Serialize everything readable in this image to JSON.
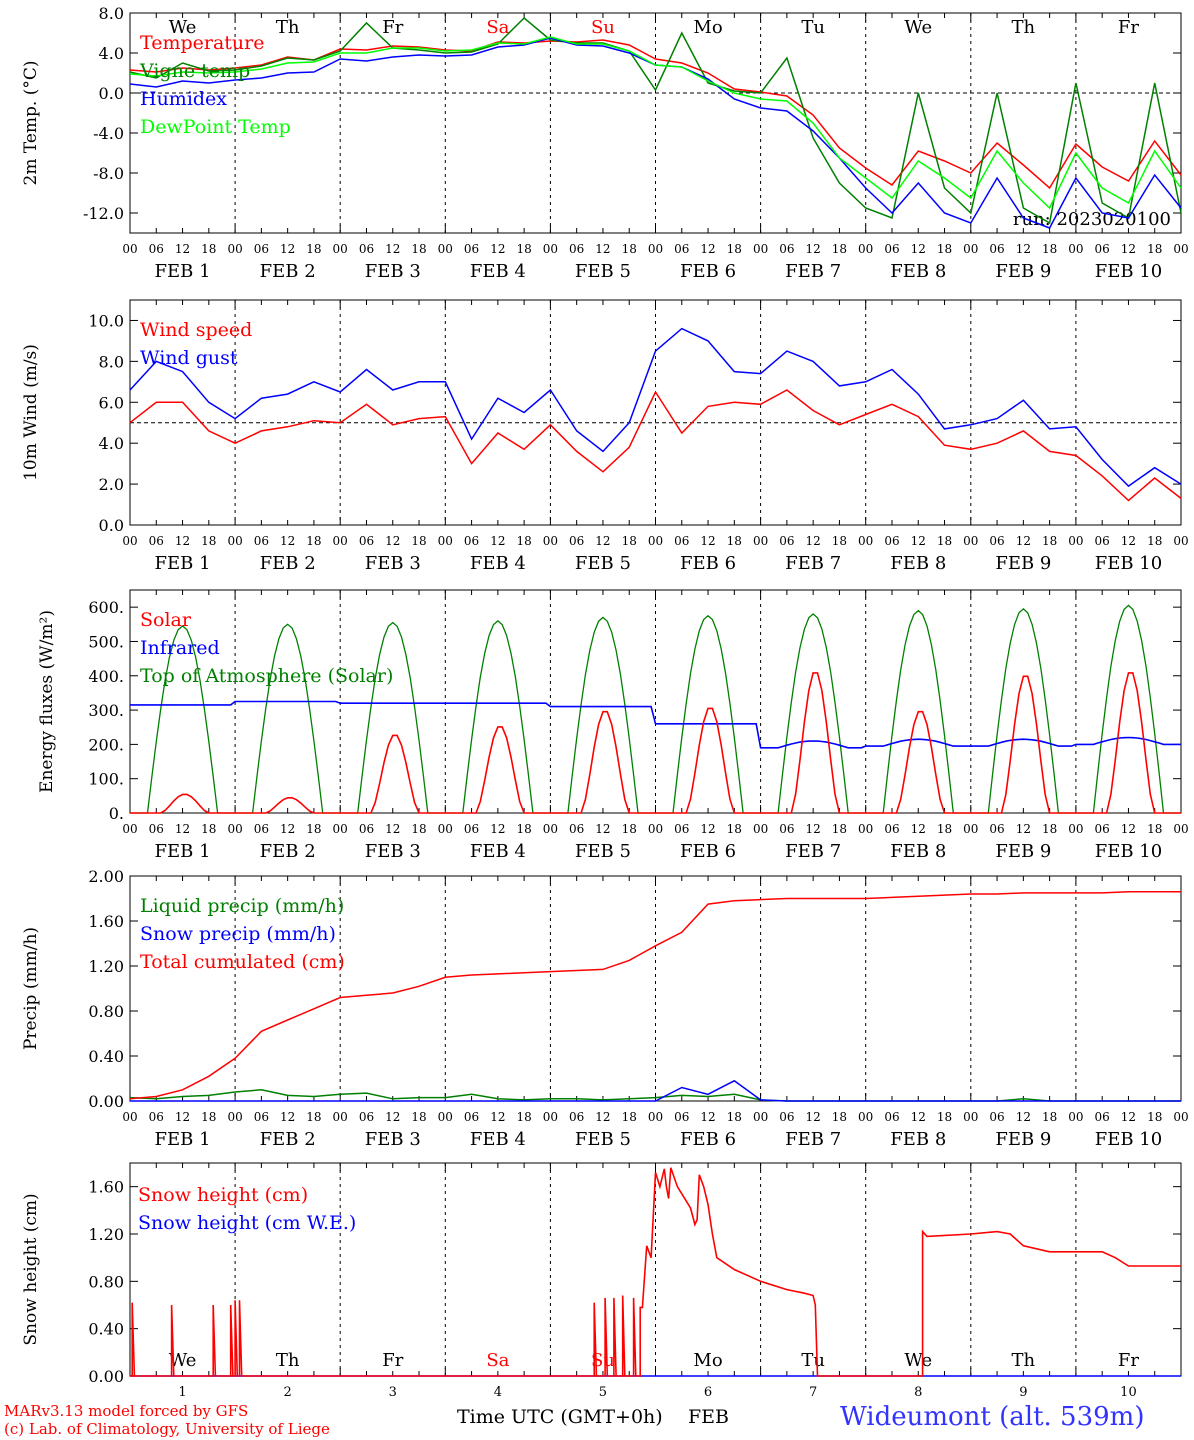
{
  "station": "Wideumont (alt. 539m)",
  "credits": [
    "MARv3.13 model forced by GFS",
    "(c) Lab. of Climatology, University of Liege"
  ],
  "xaxis_title": "Time UTC (GMT+0h)",
  "month_label": "FEB",
  "colors": {
    "red": "#ff0000",
    "blue": "#0000ff",
    "green": "#008000",
    "lightgreen": "#00ff00",
    "station": "#3333ff"
  },
  "chart_data": [
    {
      "type": "line",
      "ylabel": "2m Temp. (°C)",
      "ylim": [
        -14,
        8
      ],
      "yticks": [
        "8.0",
        "4.0",
        "0.0",
        "-4.0",
        "-8.0",
        "-12.0"
      ],
      "ytick_values": [
        8,
        4,
        0,
        -4,
        -8,
        -12
      ],
      "ref_line": 0,
      "run_label": "run: 2023020100",
      "weekdays": [
        {
          "label": "We",
          "color": "#000000"
        },
        {
          "label": "Th",
          "color": "#000000"
        },
        {
          "label": "Fr",
          "color": "#000000"
        },
        {
          "label": "Sa",
          "color": "#ff0000"
        },
        {
          "label": "Su",
          "color": "#ff0000"
        },
        {
          "label": "Mo",
          "color": "#000000"
        },
        {
          "label": "Tu",
          "color": "#000000"
        },
        {
          "label": "We",
          "color": "#000000"
        },
        {
          "label": "Th",
          "color": "#000000"
        },
        {
          "label": "Fr",
          "color": "#000000"
        }
      ],
      "x_hours": [
        0,
        6,
        12,
        18,
        24,
        30,
        36,
        42,
        48,
        54,
        60,
        66,
        72,
        78,
        84,
        90,
        96,
        102,
        108,
        114,
        120,
        126,
        132,
        138,
        144,
        150,
        156,
        162,
        168,
        174,
        180,
        186,
        192,
        198,
        204,
        210,
        216,
        222,
        228,
        234,
        240
      ],
      "series": [
        {
          "name": "Temperature",
          "color": "#ff0000",
          "values": [
            2.3,
            2.1,
            2.5,
            2.3,
            2.5,
            2.8,
            3.6,
            3.3,
            4.4,
            4.3,
            4.7,
            4.6,
            4.3,
            4.2,
            5.1,
            5.0,
            5.2,
            5.1,
            5.3,
            4.8,
            3.4,
            3.0,
            2.0,
            0.4,
            0.1,
            -0.3,
            -2.2,
            -5.5,
            -7.5,
            -9.2,
            -5.8,
            -6.8,
            -8.0,
            -5.0,
            -7.2,
            -9.5,
            -5.1,
            -7.4,
            -8.8,
            -4.8,
            -8.2
          ]
        },
        {
          "name": "Vigne temp",
          "color": "#008000",
          "values": [
            2.1,
            1.5,
            3.0,
            2.2,
            2.3,
            2.7,
            3.5,
            3.3,
            4.2,
            7.0,
            4.5,
            4.3,
            4.0,
            4.1,
            4.9,
            7.5,
            5.3,
            5.0,
            5.0,
            4.2,
            0.3,
            6.0,
            1.0,
            0.2,
            0.0,
            3.5,
            -4.5,
            -9.0,
            -11.5,
            -12.5,
            0.0,
            -9.5,
            -12.0,
            0.0,
            -11.5,
            -13.0,
            1.0,
            -11.0,
            -12.5,
            1.0,
            -12.0
          ]
        },
        {
          "name": "Humidex",
          "color": "#0000ff",
          "values": [
            0.9,
            0.6,
            1.2,
            1.0,
            1.3,
            1.5,
            2.0,
            2.1,
            3.4,
            3.2,
            3.6,
            3.8,
            3.7,
            3.8,
            4.6,
            4.8,
            5.5,
            4.8,
            4.7,
            4.0,
            2.8,
            2.6,
            1.4,
            -0.6,
            -1.5,
            -1.8,
            -3.8,
            -6.5,
            -9.5,
            -12.0,
            -9.0,
            -12.0,
            -13.0,
            -8.5,
            -12.5,
            -13.5,
            -8.5,
            -12.0,
            -12.5,
            -8.2,
            -11.5
          ]
        },
        {
          "name": "DewPoint Temp",
          "color": "#00ff00",
          "values": [
            1.9,
            1.7,
            2.1,
            2.0,
            2.1,
            2.4,
            3.0,
            3.1,
            4.0,
            4.0,
            4.5,
            4.5,
            4.2,
            4.3,
            5.0,
            4.9,
            5.6,
            4.9,
            4.9,
            4.2,
            2.8,
            2.6,
            1.2,
            0.0,
            -0.6,
            -0.8,
            -3.0,
            -6.5,
            -8.5,
            -10.5,
            -6.8,
            -8.5,
            -10.5,
            -5.8,
            -9.0,
            -11.5,
            -6.0,
            -9.5,
            -11.0,
            -5.8,
            -9.5
          ]
        }
      ]
    },
    {
      "type": "line",
      "ylabel": "10m Wind (m/s)",
      "ylim": [
        0,
        11
      ],
      "yticks": [
        "10.0",
        "8.0",
        "6.0",
        "4.0",
        "2.0",
        "0.0"
      ],
      "ytick_values": [
        10,
        8,
        6,
        4,
        2,
        0
      ],
      "ref_line": 5,
      "x_hours": [
        0,
        6,
        12,
        18,
        24,
        30,
        36,
        42,
        48,
        54,
        60,
        66,
        72,
        78,
        84,
        90,
        96,
        102,
        108,
        114,
        120,
        126,
        132,
        138,
        144,
        150,
        156,
        162,
        168,
        174,
        180,
        186,
        192,
        198,
        204,
        210,
        216,
        222,
        228,
        234,
        240
      ],
      "series": [
        {
          "name": "Wind speed",
          "color": "#ff0000",
          "values": [
            5.0,
            6.0,
            6.0,
            4.6,
            4.0,
            4.6,
            4.8,
            5.1,
            5.0,
            5.9,
            4.9,
            5.2,
            5.3,
            3.0,
            4.5,
            3.7,
            4.9,
            3.6,
            2.6,
            3.8,
            6.5,
            4.5,
            5.8,
            6.0,
            5.9,
            6.6,
            5.6,
            4.9,
            5.4,
            5.9,
            5.3,
            3.9,
            3.7,
            4.0,
            4.6,
            3.6,
            3.4,
            2.4,
            1.2,
            2.3,
            1.3
          ]
        },
        {
          "name": "Wind gust",
          "color": "#0000ff",
          "values": [
            6.6,
            8.0,
            7.5,
            6.0,
            5.2,
            6.2,
            6.4,
            7.0,
            6.5,
            7.6,
            6.6,
            7.0,
            7.0,
            4.2,
            6.2,
            5.5,
            6.6,
            4.6,
            3.6,
            5.0,
            8.5,
            9.6,
            9.0,
            7.5,
            7.4,
            8.5,
            8.0,
            6.8,
            7.0,
            7.6,
            6.4,
            4.7,
            4.9,
            5.2,
            6.1,
            4.7,
            4.8,
            3.2,
            1.9,
            2.8,
            2.0
          ]
        }
      ]
    },
    {
      "type": "line",
      "ylabel": "Energy fluxes (W/m²)",
      "ylim": [
        0,
        650
      ],
      "yticks": [
        "600.",
        "500.",
        "400.",
        "300.",
        "200.",
        "100.",
        "0."
      ],
      "ytick_values": [
        600,
        500,
        400,
        300,
        200,
        100,
        0
      ],
      "toa_peaks": [
        545,
        550,
        555,
        560,
        570,
        575,
        580,
        590,
        595,
        605
      ],
      "solar_peaks": [
        55,
        45,
        230,
        255,
        300,
        310,
        415,
        300,
        405,
        415
      ],
      "infrared_days": [
        315,
        325,
        320,
        320,
        310,
        260,
        190,
        195,
        195,
        200
      ],
      "series": [
        {
          "name": "Solar",
          "color": "#ff0000"
        },
        {
          "name": "Infrared",
          "color": "#0000ff"
        },
        {
          "name": "Top of Atmosphere (Solar)",
          "color": "#008000"
        }
      ]
    },
    {
      "type": "line",
      "ylabel": "Precip (mm/h)",
      "ylim": [
        0,
        2.0
      ],
      "yticks": [
        "2.00",
        "1.60",
        "1.20",
        "0.80",
        "0.40",
        "0.00"
      ],
      "ytick_values": [
        2.0,
        1.6,
        1.2,
        0.8,
        0.4,
        0.0
      ],
      "x_hours": [
        0,
        6,
        12,
        18,
        24,
        30,
        36,
        42,
        48,
        54,
        60,
        66,
        72,
        78,
        84,
        90,
        96,
        102,
        108,
        114,
        120,
        126,
        132,
        138,
        144,
        150,
        156,
        162,
        168,
        174,
        180,
        186,
        192,
        198,
        204,
        210,
        216,
        222,
        228,
        234,
        240
      ],
      "series": [
        {
          "name": "Liquid precip (mm/h)",
          "color": "#008000",
          "values": [
            0.03,
            0.02,
            0.04,
            0.05,
            0.08,
            0.1,
            0.05,
            0.04,
            0.06,
            0.07,
            0.02,
            0.03,
            0.03,
            0.06,
            0.02,
            0.01,
            0.02,
            0.02,
            0.01,
            0.02,
            0.03,
            0.05,
            0.04,
            0.06,
            0.01,
            0.0,
            0.0,
            0.0,
            0.0,
            0.0,
            0.0,
            0.0,
            0.0,
            0.0,
            0.02,
            0.0,
            0.0,
            0.0,
            0.0,
            0.0,
            0.0
          ]
        },
        {
          "name": "Snow precip (mm/h)",
          "color": "#0000ff",
          "values": [
            0.0,
            0.0,
            0.0,
            0.0,
            0.0,
            0.0,
            0.0,
            0.0,
            0.0,
            0.0,
            0.0,
            0.0,
            0.0,
            0.0,
            0.0,
            0.0,
            0.0,
            0.0,
            0.0,
            0.0,
            0.0,
            0.12,
            0.06,
            0.18,
            0.01,
            0.0,
            0.0,
            0.0,
            0.0,
            0.0,
            0.0,
            0.0,
            0.0,
            0.0,
            0.0,
            0.0,
            0.0,
            0.0,
            0.0,
            0.0,
            0.0
          ]
        },
        {
          "name": "Total cumulated (cm)",
          "color": "#ff0000",
          "values": [
            0.02,
            0.04,
            0.1,
            0.22,
            0.38,
            0.62,
            0.72,
            0.82,
            0.92,
            0.94,
            0.96,
            1.02,
            1.1,
            1.12,
            1.13,
            1.14,
            1.15,
            1.16,
            1.17,
            1.25,
            1.38,
            1.5,
            1.75,
            1.78,
            1.79,
            1.8,
            1.8,
            1.8,
            1.8,
            1.81,
            1.82,
            1.83,
            1.84,
            1.84,
            1.85,
            1.85,
            1.85,
            1.85,
            1.86,
            1.86,
            1.86
          ]
        }
      ]
    },
    {
      "type": "line",
      "ylabel": "Snow height (cm)",
      "ylim": [
        0,
        1.8
      ],
      "yticks": [
        "1.60",
        "1.20",
        "0.80",
        "0.40",
        "0.00"
      ],
      "ytick_values": [
        1.6,
        1.2,
        0.8,
        0.4,
        0.0
      ],
      "day_numbers": [
        "1",
        "2",
        "3",
        "4",
        "5",
        "6",
        "7",
        "8",
        "9",
        "10"
      ],
      "weekdays": [
        {
          "label": "We",
          "color": "#000000"
        },
        {
          "label": "Th",
          "color": "#000000"
        },
        {
          "label": "Fr",
          "color": "#000000"
        },
        {
          "label": "Sa",
          "color": "#ff0000"
        },
        {
          "label": "Su",
          "color": "#ff0000"
        },
        {
          "label": "Mo",
          "color": "#000000"
        },
        {
          "label": "Tu",
          "color": "#000000"
        },
        {
          "label": "We",
          "color": "#000000"
        },
        {
          "label": "Th",
          "color": "#000000"
        },
        {
          "label": "Fr",
          "color": "#000000"
        }
      ],
      "series": [
        {
          "name": "Snow height (cm)",
          "color": "#ff0000",
          "points": [
            [
              0,
              0
            ],
            [
              0.5,
              0
            ],
            [
              0.5,
              0.62
            ],
            [
              1,
              0
            ],
            [
              9.5,
              0
            ],
            [
              9.5,
              0.6
            ],
            [
              10,
              0
            ],
            [
              19,
              0
            ],
            [
              19,
              0.6
            ],
            [
              19.5,
              0
            ],
            [
              23,
              0
            ],
            [
              23,
              0.6
            ],
            [
              23.5,
              0
            ],
            [
              24,
              0
            ],
            [
              24,
              0.64
            ],
            [
              24.5,
              0
            ],
            [
              25,
              0
            ],
            [
              25,
              0.64
            ],
            [
              25.5,
              0
            ],
            [
              106,
              0
            ],
            [
              106,
              0.62
            ],
            [
              106.5,
              0
            ],
            [
              108.5,
              0
            ],
            [
              108.5,
              0.66
            ],
            [
              109,
              0
            ],
            [
              110.5,
              0
            ],
            [
              110.5,
              0.66
            ],
            [
              111,
              0
            ],
            [
              112.5,
              0
            ],
            [
              112.5,
              0.68
            ],
            [
              113,
              0
            ],
            [
              115,
              0
            ],
            [
              115,
              0.66
            ],
            [
              115.5,
              0
            ],
            [
              116.5,
              0
            ],
            [
              116.5,
              0.58
            ],
            [
              117,
              0.58
            ],
            [
              118,
              1.1
            ],
            [
              119,
              1.0
            ],
            [
              120,
              1.72
            ],
            [
              121,
              1.6
            ],
            [
              122,
              1.75
            ],
            [
              122.5,
              1.6
            ],
            [
              123,
              1.5
            ],
            [
              123.5,
              1.76
            ],
            [
              125,
              1.6
            ],
            [
              127,
              1.48
            ],
            [
              128,
              1.42
            ],
            [
              129,
              1.28
            ],
            [
              129.5,
              1.32
            ],
            [
              130,
              1.7
            ],
            [
              131,
              1.6
            ],
            [
              132,
              1.45
            ],
            [
              133,
              1.2
            ],
            [
              134,
              1.0
            ],
            [
              138,
              0.9
            ],
            [
              144,
              0.8
            ],
            [
              150,
              0.73
            ],
            [
              154,
              0.7
            ],
            [
              156,
              0.68
            ],
            [
              156.5,
              0.6
            ],
            [
              157,
              0.0
            ],
            [
              181,
              0.0
            ],
            [
              181,
              1.22
            ],
            [
              182,
              1.18
            ],
            [
              192,
              1.2
            ],
            [
              198,
              1.22
            ],
            [
              201,
              1.2
            ],
            [
              204,
              1.1
            ],
            [
              210,
              1.05
            ],
            [
              222,
              1.05
            ],
            [
              225,
              1.0
            ],
            [
              228,
              0.93
            ],
            [
              240,
              0.93
            ]
          ]
        },
        {
          "name": "Snow height (cm W.E.)",
          "color": "#0000ff",
          "points": [
            [
              0,
              0
            ],
            [
              240,
              0
            ]
          ]
        }
      ]
    }
  ]
}
